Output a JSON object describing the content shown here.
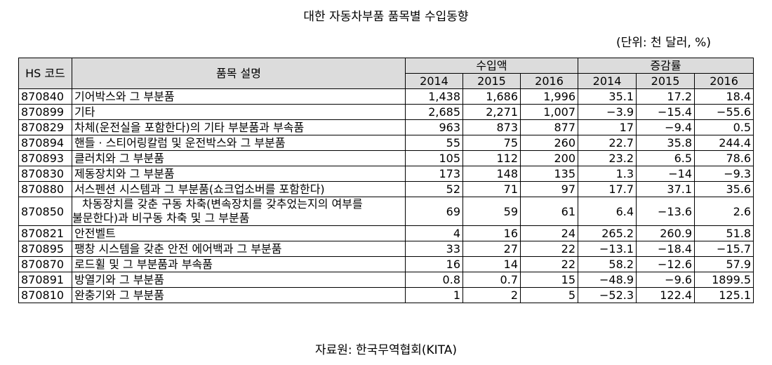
{
  "title": "대한 자동차부품 품목별 수입동향",
  "unit": "(단위: 천 달러, %)",
  "headers": {
    "hs_code": "HS 코드",
    "description": "품목 설명",
    "import_amount": "수입액",
    "change_rate": "증감률",
    "years": [
      "2014",
      "2015",
      "2016"
    ]
  },
  "rows": [
    {
      "code": "870840",
      "desc": "기어박스와 그 부분품",
      "imports": [
        "1,438",
        "1,686",
        "1,996"
      ],
      "rates": [
        "35.1",
        "17.2",
        "18.4"
      ]
    },
    {
      "code": "870899",
      "desc": "기타",
      "imports": [
        "2,685",
        "2,271",
        "1,007"
      ],
      "rates": [
        "−3.9",
        "−15.4",
        "−55.6"
      ]
    },
    {
      "code": "870829",
      "desc": "차체(운전실을 포함한다)의 기타 부분품과 부속품",
      "imports": [
        "963",
        "873",
        "877"
      ],
      "rates": [
        "17",
        "−9.4",
        "0.5"
      ]
    },
    {
      "code": "870894",
      "desc": "핸들 · 스티어링칼럼 및 운전박스와 그 부분품",
      "imports": [
        "55",
        "75",
        "260"
      ],
      "rates": [
        "22.7",
        "35.8",
        "244.4"
      ]
    },
    {
      "code": "870893",
      "desc": "클러치와 그 부분품",
      "imports": [
        "105",
        "112",
        "200"
      ],
      "rates": [
        "23.2",
        "6.5",
        "78.6"
      ]
    },
    {
      "code": "870830",
      "desc": "제동장치와 그 부분품",
      "imports": [
        "173",
        "148",
        "135"
      ],
      "rates": [
        "1.3",
        "−14",
        "−9.3"
      ]
    },
    {
      "code": "870880",
      "desc": "서스펜션 시스템과 그 부분품(쇼크업소버를 포함한다)",
      "imports": [
        "52",
        "71",
        "97"
      ],
      "rates": [
        "17.7",
        "37.1",
        "35.6"
      ]
    },
    {
      "code": "870850",
      "desc_line1": "차동장치를 갖춘 구동 차축(변속장치를 갖추었는지의 여부를",
      "desc_line2": "불문한다)과 비구동 차축 및 그 부분품",
      "imports": [
        "69",
        "59",
        "61"
      ],
      "rates": [
        "6.4",
        "−13.6",
        "2.6"
      ]
    },
    {
      "code": "870821",
      "desc": "안전벨트",
      "imports": [
        "4",
        "16",
        "24"
      ],
      "rates": [
        "265.2",
        "260.9",
        "51.8"
      ]
    },
    {
      "code": "870895",
      "desc": "팽창 시스템을 갖춘 안전 에어백과 그 부분품",
      "imports": [
        "33",
        "27",
        "22"
      ],
      "rates": [
        "−13.1",
        "−18.4",
        "−15.7"
      ]
    },
    {
      "code": "870870",
      "desc": "로드휠 및 그 부분품과 부속품",
      "imports": [
        "16",
        "14",
        "22"
      ],
      "rates": [
        "58.2",
        "−12.6",
        "57.9"
      ]
    },
    {
      "code": "870891",
      "desc": "방열기와 그 부분품",
      "imports": [
        "0.8",
        "0.7",
        "15"
      ],
      "rates": [
        "−48.9",
        "−9.6",
        "1899.5"
      ]
    },
    {
      "code": "870810",
      "desc": "완충기와 그 부분품",
      "imports": [
        "1",
        "2",
        "5"
      ],
      "rates": [
        "−52.3",
        "122.4",
        "125.1"
      ]
    }
  ],
  "source": "자료원: 한국무역협회(KITA)"
}
